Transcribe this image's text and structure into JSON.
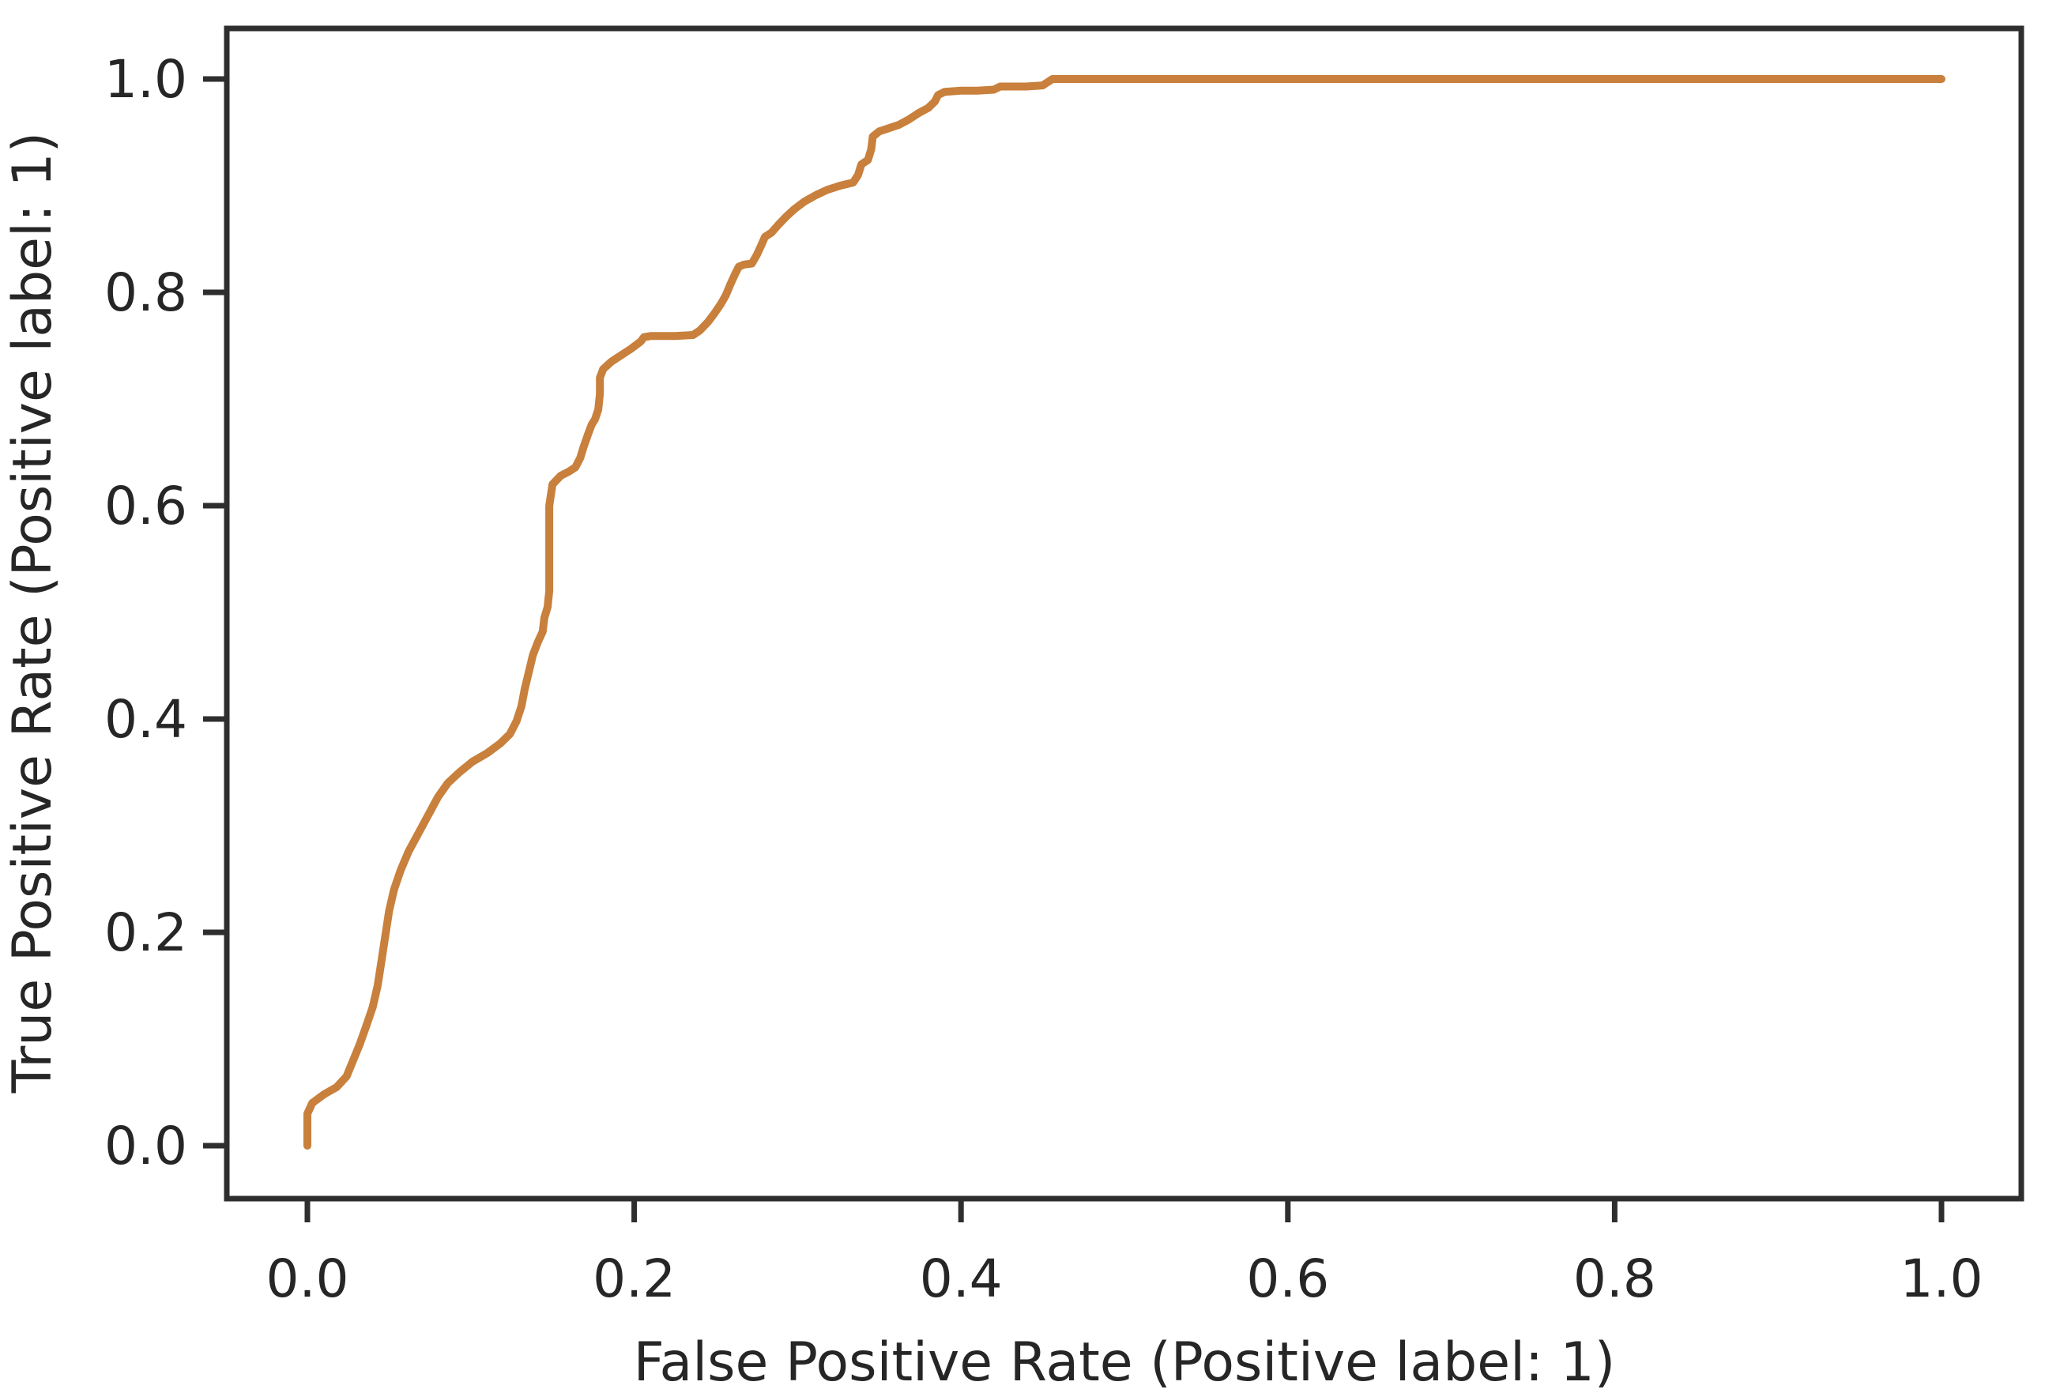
{
  "chart_data": {
    "type": "line",
    "title": "",
    "xlabel": "False Positive Rate (Positive label: 1)",
    "ylabel": "True Positive Rate (Positive label: 1)",
    "x_tick_labels": [
      "0.0",
      "0.2",
      "0.4",
      "0.6",
      "0.8",
      "1.0"
    ],
    "y_tick_labels": [
      "0.0",
      "0.2",
      "0.4",
      "0.6",
      "0.8",
      "1.0"
    ],
    "xlim": [
      -0.05,
      1.05
    ],
    "ylim": [
      -0.05,
      1.05
    ],
    "grid": false,
    "legend": null,
    "colors": {
      "curve": "#c8803c",
      "spine": "#2e2e2e",
      "text": "#262626",
      "background": "#ffffff"
    },
    "series": [
      {
        "kind": "roc-curve",
        "color": "#c8803c",
        "x": [
          0.0,
          0.0,
          0.003,
          0.01,
          0.018,
          0.024,
          0.028,
          0.032,
          0.036,
          0.04,
          0.043,
          0.045,
          0.047,
          0.05,
          0.053,
          0.057,
          0.062,
          0.068,
          0.074,
          0.08,
          0.086,
          0.093,
          0.101,
          0.11,
          0.118,
          0.124,
          0.128,
          0.131,
          0.133,
          0.136,
          0.138,
          0.141,
          0.144,
          0.145,
          0.147,
          0.148,
          0.148,
          0.15,
          0.155,
          0.16,
          0.164,
          0.167,
          0.169,
          0.172,
          0.174,
          0.176,
          0.178,
          0.179,
          0.179,
          0.181,
          0.186,
          0.192,
          0.198,
          0.204,
          0.206,
          0.21,
          0.225,
          0.236,
          0.24,
          0.245,
          0.249,
          0.253,
          0.256,
          0.259,
          0.262,
          0.264,
          0.267,
          0.272,
          0.275,
          0.278,
          0.28,
          0.284,
          0.288,
          0.293,
          0.298,
          0.304,
          0.311,
          0.318,
          0.326,
          0.334,
          0.337,
          0.339,
          0.343,
          0.345,
          0.346,
          0.35,
          0.356,
          0.362,
          0.368,
          0.374,
          0.38,
          0.384,
          0.386,
          0.39,
          0.4,
          0.41,
          0.42,
          0.424,
          0.44,
          0.45,
          0.453,
          0.456,
          0.5,
          0.6,
          0.7,
          0.8,
          0.9,
          1.0
        ],
        "y": [
          0.0,
          0.03,
          0.04,
          0.048,
          0.055,
          0.065,
          0.08,
          0.095,
          0.112,
          0.13,
          0.15,
          0.17,
          0.19,
          0.22,
          0.24,
          0.258,
          0.276,
          0.293,
          0.31,
          0.327,
          0.34,
          0.35,
          0.36,
          0.368,
          0.377,
          0.386,
          0.398,
          0.412,
          0.428,
          0.447,
          0.46,
          0.472,
          0.482,
          0.495,
          0.505,
          0.52,
          0.6,
          0.62,
          0.628,
          0.632,
          0.636,
          0.645,
          0.655,
          0.668,
          0.676,
          0.681,
          0.69,
          0.705,
          0.72,
          0.728,
          0.735,
          0.741,
          0.747,
          0.754,
          0.758,
          0.759,
          0.759,
          0.76,
          0.764,
          0.772,
          0.78,
          0.789,
          0.797,
          0.808,
          0.818,
          0.824,
          0.826,
          0.827,
          0.835,
          0.845,
          0.852,
          0.856,
          0.863,
          0.871,
          0.878,
          0.885,
          0.891,
          0.896,
          0.9,
          0.903,
          0.91,
          0.92,
          0.924,
          0.934,
          0.946,
          0.951,
          0.954,
          0.957,
          0.962,
          0.968,
          0.973,
          0.979,
          0.985,
          0.988,
          0.989,
          0.989,
          0.99,
          0.993,
          0.993,
          0.994,
          0.997,
          1.0,
          1.0,
          1.0,
          1.0,
          1.0,
          1.0,
          1.0
        ]
      }
    ]
  }
}
